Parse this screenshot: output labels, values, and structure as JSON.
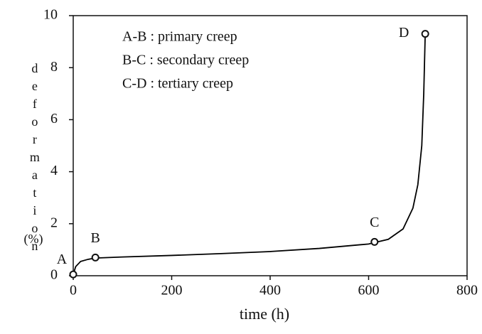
{
  "chart_data": {
    "type": "line",
    "xlabel": "time (h)",
    "ylabel": "deformation",
    "ylabel_unit": "(%)",
    "annotations": [
      "A-B : primary creep",
      "B-C : secondary creep",
      "C-D : tertiary creep"
    ],
    "color": "#000000",
    "x": [
      0,
      5,
      15,
      30,
      45,
      100,
      200,
      300,
      400,
      500,
      600,
      640,
      670,
      690,
      700,
      708,
      712,
      715
    ],
    "values": [
      0.05,
      0.35,
      0.55,
      0.63,
      0.68,
      0.72,
      0.78,
      0.85,
      0.93,
      1.05,
      1.22,
      1.4,
      1.8,
      2.6,
      3.5,
      5,
      7,
      9.3
    ],
    "points": [
      {
        "label": "A",
        "x": 0,
        "y": 0.05
      },
      {
        "label": "B",
        "x": 45,
        "y": 0.7
      },
      {
        "label": "C",
        "x": 612,
        "y": 1.3
      },
      {
        "label": "D",
        "x": 715,
        "y": 9.3
      }
    ],
    "xlim": [
      0,
      800
    ],
    "ylim": [
      0,
      10
    ],
    "xticks": [
      0,
      200,
      400,
      600,
      800
    ],
    "yticks": [
      0,
      2,
      4,
      6,
      8,
      10
    ]
  }
}
